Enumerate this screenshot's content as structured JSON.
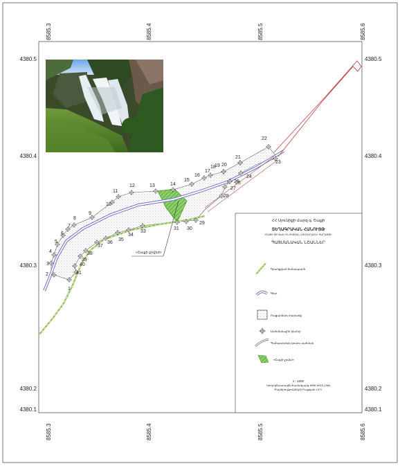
{
  "axis": {
    "top_ticks": [
      "8585.3",
      "8585.4",
      "8585.5",
      "8585.6"
    ],
    "bottom_ticks": [
      "8585.3",
      "8585.4",
      "8585.5",
      "8585.6"
    ],
    "left_ticks": [
      "4380.5",
      "4380.4",
      "4380.3",
      "4380.2",
      "4380.1"
    ],
    "right_ticks": [
      "4380.5",
      "4380.4",
      "4380.3",
      "4380.2",
      "4380.1"
    ]
  },
  "points": [
    "1",
    "2",
    "3",
    "4",
    "5",
    "6",
    "7",
    "8",
    "9",
    "10",
    "11",
    "12",
    "13",
    "14",
    "15",
    "16",
    "17",
    "18",
    "19",
    "20",
    "21",
    "22",
    "23",
    "24",
    "25",
    "26",
    "27",
    "28",
    "29",
    "30",
    "31",
    "33",
    "34",
    "35",
    "36",
    "37",
    "38",
    "39",
    "40",
    "41"
  ],
  "callout_label": "«Շաքի ջրվեժ»",
  "legend": {
    "subtitle": "ՀՀ Սյունիքի մարզ գ. Շաքի",
    "title": "ՏԵՂԱԳՐԱԿԱՆ ՀԱՆՈՒՅԹ",
    "description": "«ՇԱՔԻ ՋՐՎԵԺ» ԲՆՈՒԹՅԱՆ ՀՈՒՇԱՐՁԱՆԻ ՏԱՐԱԾՔԻ",
    "heading": "ՊԱՅՄԱՆԱԿԱՆ ՆՇԱՆՆԵՐ",
    "items": [
      {
        "label": "Գրանցված ճանապարհ",
        "symbol": "road"
      },
      {
        "label": "Գետ",
        "symbol": "river"
      },
      {
        "label": "Բացարձակ տարածք",
        "symbol": "stipple"
      },
      {
        "label": "Սահմանային կետեր",
        "symbol": "point"
      },
      {
        "label": "Պահպանման գոտու սահման",
        "symbol": "boundary"
      },
      {
        "label": "«Շաքի ջրվեժ»",
        "symbol": "waterfall"
      }
    ],
    "scale": "1 : 1000",
    "projection": "Կոորդինատային համակարգ ARM WGS-1984",
    "footer": "Բարձրությունների Բալթյան 1977"
  },
  "colors": {
    "river": "#6f6fc9",
    "boundary": "#c94a4a",
    "road": "#8fbf4a",
    "waterfall": "#66bb44",
    "stipple": "#909090"
  }
}
